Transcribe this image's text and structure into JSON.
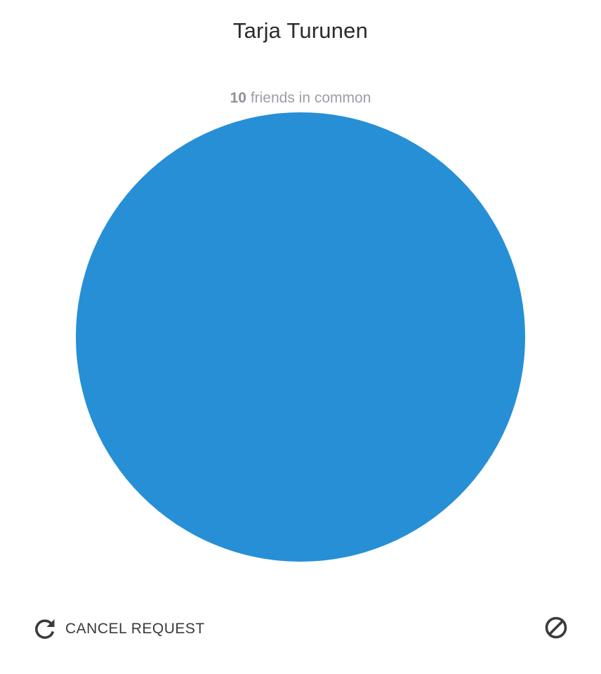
{
  "profile": {
    "name": "Tarja Turunen",
    "mutual_friends_count": "10",
    "mutual_friends_text": "friends in common",
    "avatar_color": "#268fd6"
  },
  "actions": {
    "cancel_request_label": "CANCEL REQUEST",
    "cancel_request_icon": "refresh-icon",
    "block_icon": "block-icon"
  }
}
